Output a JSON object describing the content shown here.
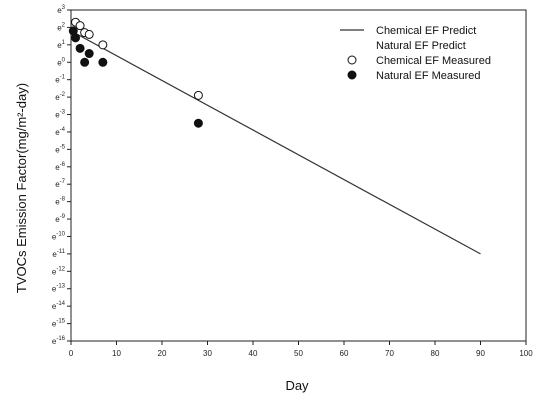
{
  "chart_data": {
    "type": "scatter",
    "title": "",
    "xlabel": "Day",
    "ylabel": "TVOCs Emission Factor(mg/m²-day)",
    "xlim": [
      0,
      100
    ],
    "x_ticks": [
      0,
      10,
      20,
      30,
      40,
      50,
      60,
      70,
      80,
      90,
      100
    ],
    "ylim_exponent": [
      -16,
      3
    ],
    "y_scale": "log (base e)",
    "y_tick_base": "e",
    "y_tick_exponents": [
      "3",
      "2",
      "1",
      "0",
      "-1",
      "-2",
      "-3",
      "-4",
      "-5",
      "-6",
      "-7",
      "-8",
      "-9",
      "-10",
      "-11",
      "-12",
      "-13",
      "-14",
      "-15",
      "-16"
    ],
    "grid": false,
    "legend_position": "top-right",
    "series": [
      {
        "name": "Chemical EF Predict",
        "kind": "line",
        "color": "#333333",
        "x": [
          0,
          90
        ],
        "y_exponent": [
          1.8,
          -11.0
        ]
      },
      {
        "name": "Natural EF Predict",
        "kind": "line",
        "color": "#333333",
        "x": [],
        "y_exponent": []
      },
      {
        "name": "Chemical EF Measured",
        "kind": "scatter",
        "marker": "open-circle",
        "x": [
          1,
          2,
          3,
          4,
          7,
          28
        ],
        "y_exponent": [
          2.3,
          2.1,
          1.7,
          1.6,
          1.0,
          -1.9
        ]
      },
      {
        "name": "Natural EF Measured",
        "kind": "scatter",
        "marker": "filled-circle",
        "x": [
          0.5,
          1,
          2,
          3,
          4,
          7,
          28
        ],
        "y_exponent": [
          1.8,
          1.4,
          0.8,
          0.0,
          0.5,
          0.0,
          -3.5
        ]
      }
    ]
  }
}
